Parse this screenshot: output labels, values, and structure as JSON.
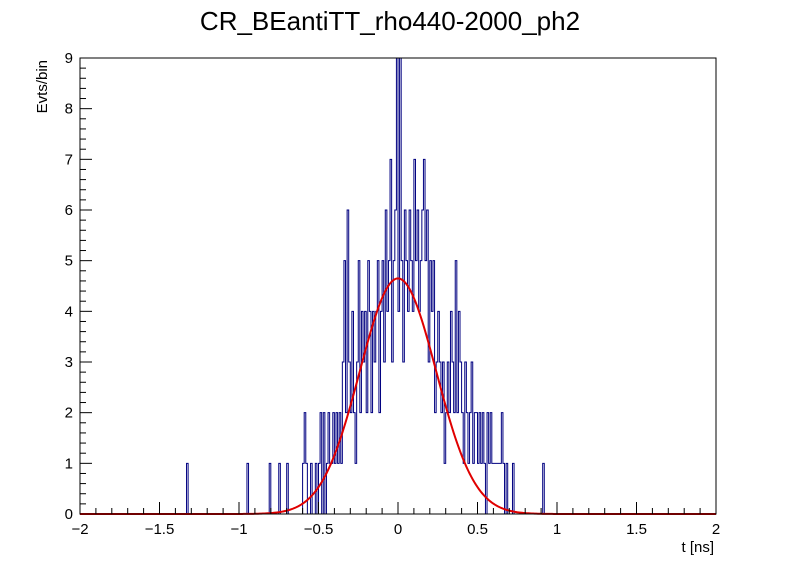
{
  "chart_data": {
    "type": "histogram",
    "title": "CR_BEantiTT_rho440-2000_ph2",
    "xlabel": "t [ns]",
    "ylabel": "Evts/bin",
    "xlim": [
      -2,
      2
    ],
    "ylim": [
      0,
      9
    ],
    "x_ticks": [
      -2,
      -1.5,
      -1,
      -0.5,
      0,
      0.5,
      1,
      1.5,
      2
    ],
    "x_tick_labels": [
      "−2",
      "−1.5",
      "−1",
      "−0.5",
      "0",
      "0.5",
      "1",
      "1.5",
      "2"
    ],
    "y_ticks": [
      0,
      1,
      2,
      3,
      4,
      5,
      6,
      7,
      8,
      9
    ],
    "y_tick_labels": [
      "0",
      "1",
      "2",
      "3",
      "4",
      "5",
      "6",
      "7",
      "8",
      "9"
    ],
    "grid": false,
    "series": [
      {
        "kind": "histogram",
        "color": "#000080",
        "bin_width": 0.01,
        "bins": [
          [
            -1.33,
            1
          ],
          [
            -0.95,
            1
          ],
          [
            -0.81,
            1
          ],
          [
            -0.75,
            1
          ],
          [
            -0.7,
            1
          ],
          [
            -0.6,
            1
          ],
          [
            -0.59,
            2
          ],
          [
            -0.58,
            1
          ],
          [
            -0.55,
            1
          ],
          [
            -0.52,
            1
          ],
          [
            -0.5,
            1
          ],
          [
            -0.49,
            2
          ],
          [
            -0.47,
            2
          ],
          [
            -0.45,
            1
          ],
          [
            -0.44,
            2
          ],
          [
            -0.43,
            1
          ],
          [
            -0.42,
            1
          ],
          [
            -0.41,
            2
          ],
          [
            -0.4,
            1
          ],
          [
            -0.39,
            2
          ],
          [
            -0.38,
            1
          ],
          [
            -0.37,
            2
          ],
          [
            -0.36,
            1
          ],
          [
            -0.35,
            3
          ],
          [
            -0.34,
            5
          ],
          [
            -0.33,
            2
          ],
          [
            -0.32,
            6
          ],
          [
            -0.31,
            3
          ],
          [
            -0.3,
            2
          ],
          [
            -0.29,
            4
          ],
          [
            -0.28,
            2
          ],
          [
            -0.27,
            1
          ],
          [
            -0.26,
            3
          ],
          [
            -0.25,
            5
          ],
          [
            -0.24,
            2
          ],
          [
            -0.23,
            4
          ],
          [
            -0.22,
            3
          ],
          [
            -0.21,
            4
          ],
          [
            -0.2,
            2
          ],
          [
            -0.19,
            5
          ],
          [
            -0.18,
            4
          ],
          [
            -0.17,
            2
          ],
          [
            -0.16,
            4
          ],
          [
            -0.15,
            3
          ],
          [
            -0.14,
            4
          ],
          [
            -0.13,
            5
          ],
          [
            -0.12,
            2
          ],
          [
            -0.11,
            4
          ],
          [
            -0.1,
            5
          ],
          [
            -0.09,
            3
          ],
          [
            -0.08,
            6
          ],
          [
            -0.07,
            4
          ],
          [
            -0.06,
            5
          ],
          [
            -0.05,
            7
          ],
          [
            -0.04,
            3
          ],
          [
            -0.03,
            5
          ],
          [
            -0.02,
            6
          ],
          [
            -0.01,
            9
          ],
          [
            0.0,
            4
          ],
          [
            0.01,
            9
          ],
          [
            0.02,
            5
          ],
          [
            0.03,
            3
          ],
          [
            0.04,
            6
          ],
          [
            0.05,
            5
          ],
          [
            0.06,
            4
          ],
          [
            0.07,
            6
          ],
          [
            0.08,
            5
          ],
          [
            0.09,
            4
          ],
          [
            0.1,
            7
          ],
          [
            0.11,
            5
          ],
          [
            0.12,
            6
          ],
          [
            0.13,
            4
          ],
          [
            0.14,
            5
          ],
          [
            0.15,
            6
          ],
          [
            0.16,
            7
          ],
          [
            0.17,
            5
          ],
          [
            0.18,
            6
          ],
          [
            0.19,
            3
          ],
          [
            0.2,
            5
          ],
          [
            0.21,
            4
          ],
          [
            0.22,
            5
          ],
          [
            0.23,
            2
          ],
          [
            0.24,
            3
          ],
          [
            0.25,
            4
          ],
          [
            0.26,
            3
          ],
          [
            0.27,
            2
          ],
          [
            0.28,
            3
          ],
          [
            0.29,
            1
          ],
          [
            0.3,
            2
          ],
          [
            0.31,
            3
          ],
          [
            0.32,
            2
          ],
          [
            0.33,
            4
          ],
          [
            0.34,
            3
          ],
          [
            0.35,
            2
          ],
          [
            0.36,
            5
          ],
          [
            0.37,
            2
          ],
          [
            0.38,
            4
          ],
          [
            0.39,
            3
          ],
          [
            0.4,
            2
          ],
          [
            0.41,
            1
          ],
          [
            0.42,
            3
          ],
          [
            0.43,
            2
          ],
          [
            0.44,
            1
          ],
          [
            0.45,
            2
          ],
          [
            0.46,
            3
          ],
          [
            0.47,
            1
          ],
          [
            0.48,
            2
          ],
          [
            0.49,
            2
          ],
          [
            0.5,
            1
          ],
          [
            0.51,
            2
          ],
          [
            0.52,
            1
          ],
          [
            0.53,
            2
          ],
          [
            0.54,
            1
          ],
          [
            0.56,
            2
          ],
          [
            0.57,
            1
          ],
          [
            0.58,
            2
          ],
          [
            0.59,
            1
          ],
          [
            0.6,
            1
          ],
          [
            0.61,
            1
          ],
          [
            0.62,
            1
          ],
          [
            0.63,
            1
          ],
          [
            0.64,
            1
          ],
          [
            0.65,
            2
          ],
          [
            0.66,
            1
          ],
          [
            0.68,
            1
          ],
          [
            0.72,
            1
          ],
          [
            0.91,
            1
          ]
        ]
      },
      {
        "kind": "fit",
        "shape": "gaussian",
        "color": "#e00000",
        "amplitude": 4.65,
        "mean": 0.0,
        "sigma": 0.24,
        "range": [
          -2,
          2
        ]
      }
    ]
  }
}
